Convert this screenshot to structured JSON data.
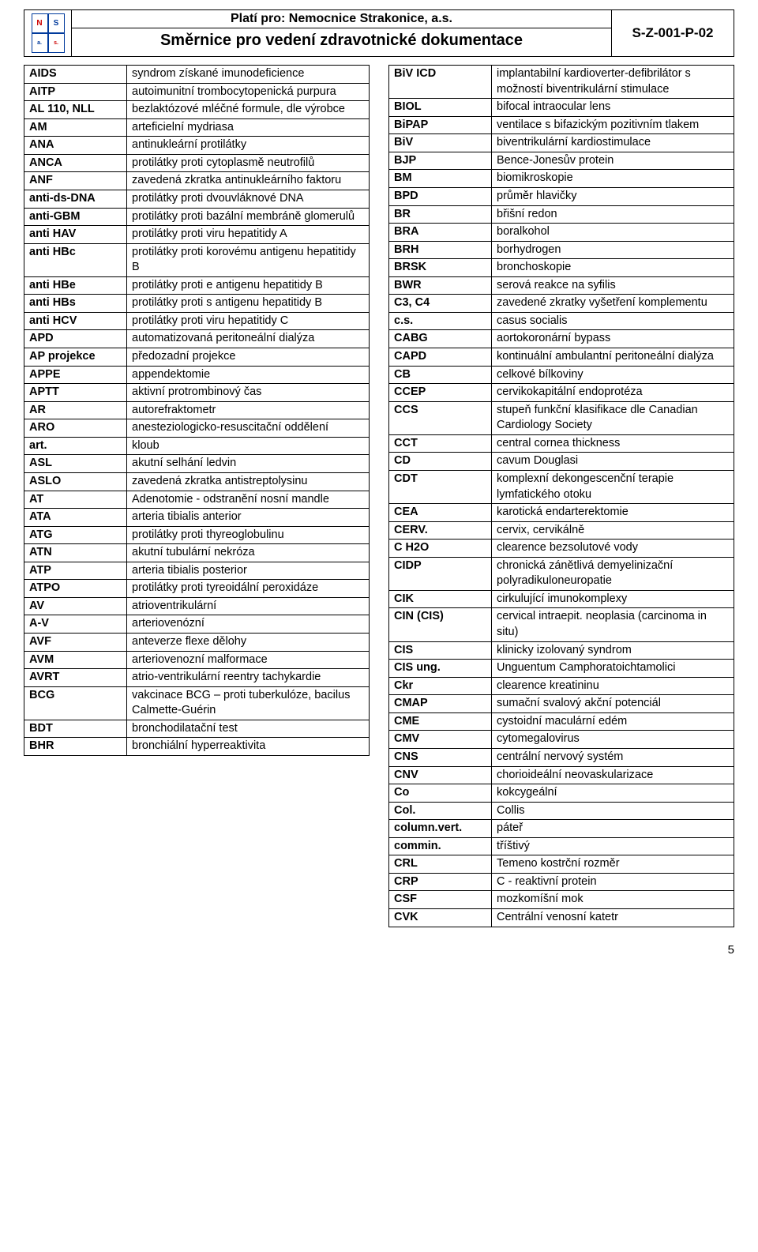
{
  "header": {
    "applies": "Platí pro: Nemocnice Strakonice, a.s.",
    "title": "Směrnice pro vedení zdravotnické dokumentace",
    "code": "S-Z-001-P-02",
    "logo": {
      "n": "N",
      "s": "S",
      "a": "a.",
      "s2": "s."
    }
  },
  "left": [
    [
      "AIDS",
      "syndrom získané imunodeficience"
    ],
    [
      "AITP",
      "autoimunitní trombocytopenická purpura"
    ],
    [
      "AL 110, NLL",
      "bezlaktózové mléčné formule, dle výrobce"
    ],
    [
      "AM",
      "arteficielní mydriasa"
    ],
    [
      "ANA",
      "antinukleární protilátky"
    ],
    [
      "ANCA",
      "protilátky proti cytoplasmě neutrofilů"
    ],
    [
      "ANF",
      "zavedená zkratka antinukleárního faktoru"
    ],
    [
      "anti-ds-DNA",
      "protilátky proti dvouvláknové DNA"
    ],
    [
      "anti-GBM",
      "protilátky proti bazální membráně glomerulů"
    ],
    [
      "anti HAV",
      "protilátky proti viru hepatitidy A"
    ],
    [
      "anti HBc",
      "protilátky proti korovému antigenu hepatitidy B"
    ],
    [
      "anti HBe",
      "protilátky proti e antigenu hepatitidy B"
    ],
    [
      "anti HBs",
      "protilátky proti s antigenu hepatitidy B"
    ],
    [
      "anti HCV",
      "protilátky proti viru hepatitidy C"
    ],
    [
      "APD",
      "automatizovaná peritoneální dialýza"
    ],
    [
      "AP projekce",
      "předozadní projekce"
    ],
    [
      "APPE",
      "appendektomie"
    ],
    [
      "APTT",
      "aktivní protrombinový čas"
    ],
    [
      "AR",
      "autorefraktometr"
    ],
    [
      "ARO",
      "anesteziologicko-resuscitační oddělení"
    ],
    [
      "art.",
      "kloub"
    ],
    [
      "ASL",
      "akutní selhání ledvin"
    ],
    [
      "ASLO",
      "zavedená zkratka antistreptolysinu"
    ],
    [
      "AT",
      "Adenotomie - odstranění nosní mandle"
    ],
    [
      "ATA",
      "arteria tibialis anterior"
    ],
    [
      "ATG",
      "protilátky proti thyreoglobulinu"
    ],
    [
      "ATN",
      "akutní tubulární nekróza"
    ],
    [
      "ATP",
      "arteria tibialis posterior"
    ],
    [
      "ATPO",
      "protilátky proti tyreoidální peroxidáze"
    ],
    [
      "AV",
      "atrioventrikulární"
    ],
    [
      "A-V",
      "arteriovenózní"
    ],
    [
      "AVF",
      "anteverze flexe dělohy"
    ],
    [
      "AVM",
      "arteriovenozní malformace"
    ],
    [
      "AVRT",
      "atrio-ventrikulární reentry tachykardie"
    ],
    [
      "BCG",
      "vakcinace BCG – proti tuberkulóze, bacilus Calmette-Guérin"
    ],
    [
      "BDT",
      "bronchodilatační test"
    ],
    [
      "BHR",
      "bronchiální hyperreaktivita"
    ]
  ],
  "right": [
    [
      "BiV ICD",
      "implantabilní kardioverter-defibrilátor s možností biventrikulární stimulace"
    ],
    [
      "BIOL",
      "bifocal intraocular lens"
    ],
    [
      "BiPAP",
      "ventilace s bifazickým pozitivním tlakem"
    ],
    [
      "BiV",
      "biventrikulární kardiostimulace"
    ],
    [
      "BJP",
      "Bence-Jonesův protein"
    ],
    [
      "BM",
      "biomikroskopie"
    ],
    [
      "BPD",
      "průměr hlavičky"
    ],
    [
      "BR",
      "břišní redon"
    ],
    [
      "BRA",
      "boralkohol"
    ],
    [
      "BRH",
      "borhydrogen"
    ],
    [
      "BRSK",
      "bronchoskopie"
    ],
    [
      "BWR",
      "serová reakce na syfilis"
    ],
    [
      "C3, C4",
      "zavedené zkratky vyšetření komplementu"
    ],
    [
      "c.s.",
      "casus socialis"
    ],
    [
      "CABG",
      "aortokoronární bypass"
    ],
    [
      "CAPD",
      "kontinuální ambulantní peritoneální dialýza"
    ],
    [
      "CB",
      "celkové bílkoviny"
    ],
    [
      "CCEP",
      "cervikokapitální endoprotéza"
    ],
    [
      "CCS",
      "stupeň funkční klasifikace dle Canadian Cardiology Society"
    ],
    [
      "CCT",
      "central cornea thickness"
    ],
    [
      "CD",
      "cavum Douglasi"
    ],
    [
      "CDT",
      "komplexní dekongescenční terapie lymfatického otoku"
    ],
    [
      "CEA",
      "karotická endarterektomie"
    ],
    [
      "CERV.",
      "cervix, cervikálně"
    ],
    [
      "C H2O",
      "clearence bezsolutové vody"
    ],
    [
      "CIDP",
      "chronická zánětlivá demyelinizační polyradikuloneuropatie"
    ],
    [
      "CIK",
      "cirkulující imunokomplexy"
    ],
    [
      "CIN (CIS)",
      "cervical intraepit. neoplasia (carcinoma in situ)"
    ],
    [
      "CIS",
      "klinicky izolovaný syndrom"
    ],
    [
      "CIS ung.",
      "Unguentum Camphoratoichtamolici"
    ],
    [
      "Ckr",
      "clearence kreatininu"
    ],
    [
      "CMAP",
      "sumační svalový akční potenciál"
    ],
    [
      "CME",
      "cystoidní maculární edém"
    ],
    [
      "CMV",
      "cytomegalovirus"
    ],
    [
      "CNS",
      "centrální nervový systém"
    ],
    [
      "CNV",
      "chorioideální neovaskularizace"
    ],
    [
      "Co",
      "kokcygeální"
    ],
    [
      "Col.",
      "Collis"
    ],
    [
      "column.vert.",
      "páteř"
    ],
    [
      "commin.",
      "tříštivý"
    ],
    [
      "CRL",
      "Temeno kostrční rozměr"
    ],
    [
      "CRP",
      "C - reaktivní protein"
    ],
    [
      "CSF",
      "mozkomíšní mok"
    ],
    [
      "CVK",
      "Centrální venosní katetr"
    ]
  ],
  "pagenum": "5"
}
